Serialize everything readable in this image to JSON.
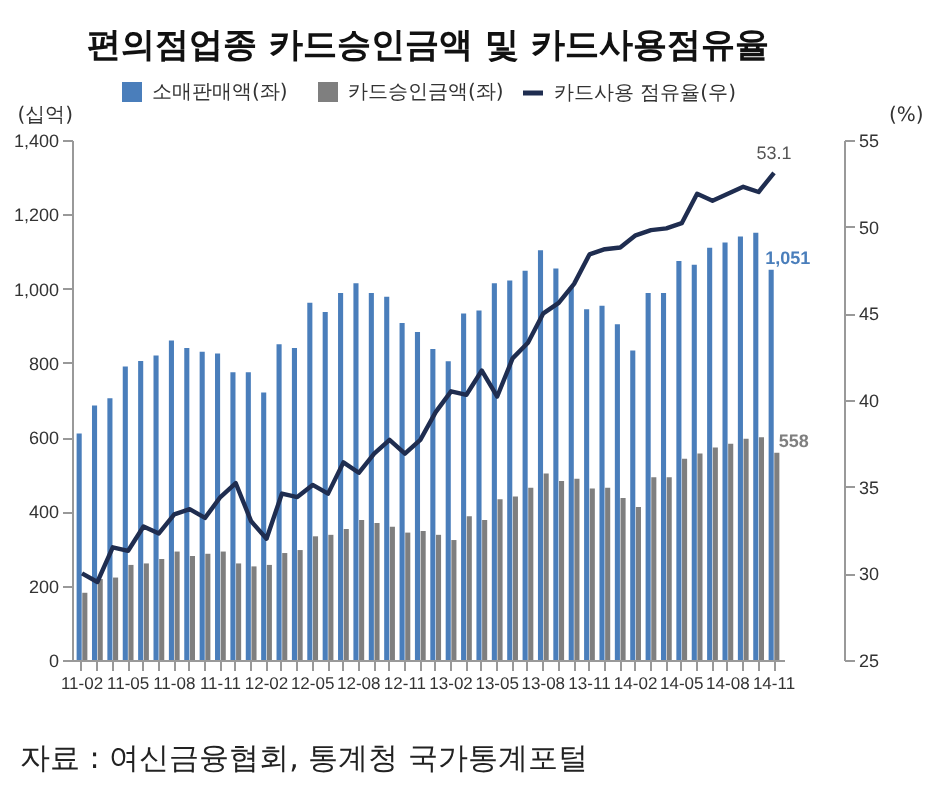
{
  "chart_data": {
    "type": "bar",
    "title": "편의점업종 카드승인금액 및 카드사용점유율",
    "categories": [
      "11-02",
      null,
      null,
      "11-05",
      null,
      null,
      "11-08",
      null,
      null,
      "11-11",
      null,
      null,
      "12-02",
      null,
      null,
      "12-05",
      null,
      null,
      "12-08",
      null,
      null,
      "12-11",
      null,
      null,
      "13-02",
      null,
      null,
      "13-05",
      null,
      null,
      "13-08",
      null,
      null,
      "13-11",
      null,
      null,
      "14-02",
      null,
      null,
      "14-05",
      null,
      null,
      "14-08",
      null,
      null,
      "14-11"
    ],
    "series": [
      {
        "name": "소매판매액(좌)",
        "color": "#4a7ebb",
        "values": [
          610,
          685,
          705,
          790,
          805,
          820,
          860,
          840,
          830,
          825,
          775,
          775,
          720,
          850,
          840,
          962,
          937,
          988,
          1014,
          988,
          978,
          907,
          883,
          837,
          804,
          933,
          941,
          1014,
          1022,
          1048,
          1103,
          1054,
          1004,
          944,
          954,
          904,
          833,
          988,
          988,
          1074,
          1064,
          1110,
          1124,
          1140,
          1150,
          1051
        ],
        "value_labels": [
          null,
          null,
          null,
          null,
          null,
          null,
          null,
          null,
          null,
          null,
          null,
          null,
          null,
          null,
          null,
          null,
          null,
          null,
          null,
          null,
          null,
          null,
          null,
          null,
          null,
          null,
          null,
          null,
          null,
          null,
          null,
          null,
          null,
          null,
          null,
          null,
          null,
          null,
          null,
          null,
          null,
          null,
          null,
          null,
          null,
          "1,051"
        ]
      },
      {
        "name": "카드승인금액(좌)",
        "color": "#7f7f7f",
        "values": [
          181,
          218,
          222,
          256,
          260,
          272,
          292,
          280,
          286,
          292,
          260,
          252,
          256,
          288,
          296,
          333,
          337,
          353,
          377,
          369,
          359,
          343,
          347,
          337,
          323,
          387,
          377,
          433,
          440,
          464,
          502,
          482,
          488,
          462,
          464,
          436,
          412,
          492,
          492,
          542,
          556,
          572,
          582,
          596,
          600,
          558
        ],
        "value_labels": [
          null,
          null,
          null,
          null,
          null,
          null,
          null,
          null,
          null,
          null,
          null,
          null,
          null,
          null,
          null,
          null,
          null,
          null,
          null,
          null,
          null,
          null,
          null,
          null,
          null,
          null,
          null,
          null,
          null,
          null,
          null,
          null,
          null,
          null,
          null,
          null,
          null,
          null,
          null,
          null,
          null,
          null,
          null,
          null,
          null,
          "558"
        ]
      },
      {
        "name": "카드사용 점유율(우)",
        "type": "line",
        "axis": "y2",
        "color": "#1f2d50",
        "values": [
          30.0,
          29.5,
          31.5,
          31.3,
          32.7,
          32.3,
          33.4,
          33.7,
          33.2,
          34.4,
          35.2,
          33.0,
          32.0,
          34.6,
          34.4,
          35.1,
          34.6,
          36.4,
          35.8,
          36.9,
          37.7,
          36.9,
          37.7,
          39.3,
          40.5,
          40.3,
          41.7,
          40.2,
          42.4,
          43.3,
          45.0,
          45.6,
          46.7,
          48.4,
          48.7,
          48.8,
          49.5,
          49.8,
          49.9,
          50.2,
          51.9,
          51.5,
          51.9,
          52.3,
          52.0,
          53.1
        ],
        "value_labels": [
          null,
          null,
          null,
          null,
          null,
          null,
          null,
          null,
          null,
          null,
          null,
          null,
          null,
          null,
          null,
          null,
          null,
          null,
          null,
          null,
          null,
          null,
          null,
          null,
          null,
          null,
          null,
          null,
          null,
          null,
          null,
          null,
          null,
          null,
          null,
          null,
          null,
          null,
          null,
          null,
          null,
          null,
          null,
          null,
          null,
          "53.1"
        ]
      }
    ],
    "ylabel": "(십억)",
    "ylim": [
      0,
      1400
    ],
    "yticks": [
      0,
      200,
      400,
      600,
      800,
      {
        "value": 1000,
        "label": "1,000"
      },
      {
        "value": 1200,
        "label": "1,200"
      },
      {
        "value": 1400,
        "label": "1,400"
      }
    ],
    "y2label": "(%)",
    "y2lim": [
      25,
      55
    ],
    "y2ticks": [
      25,
      30,
      35,
      40,
      45,
      50,
      55
    ],
    "legend": "top",
    "annotations": [
      "자료 : 여신금융협회, 통계청 국가통계포털"
    ]
  }
}
